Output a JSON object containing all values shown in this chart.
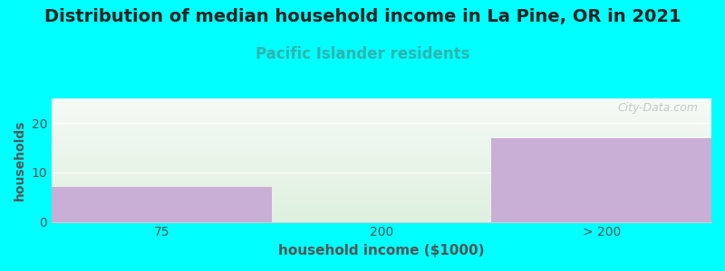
{
  "title": "Distribution of median household income in La Pine, OR in 2021",
  "subtitle": "Pacific Islander residents",
  "xlabel": "household income ($1000)",
  "ylabel": "households",
  "categories": [
    "75",
    "200",
    "> 200"
  ],
  "values": [
    7,
    0,
    17
  ],
  "bar_color": "#c9aed6",
  "bg_outer": "#00ffff",
  "bg_plot_top": "#f5faf5",
  "bg_plot_bottom": "#dff0df",
  "title_fontsize": 14,
  "subtitle_fontsize": 12,
  "subtitle_color": "#2db5b0",
  "axis_label_color": "#555555",
  "tick_color": "#555555",
  "grid_color": "#ffffff",
  "ylim": [
    0,
    25
  ],
  "yticks": [
    0,
    10,
    20
  ],
  "watermark": "City-Data.com"
}
